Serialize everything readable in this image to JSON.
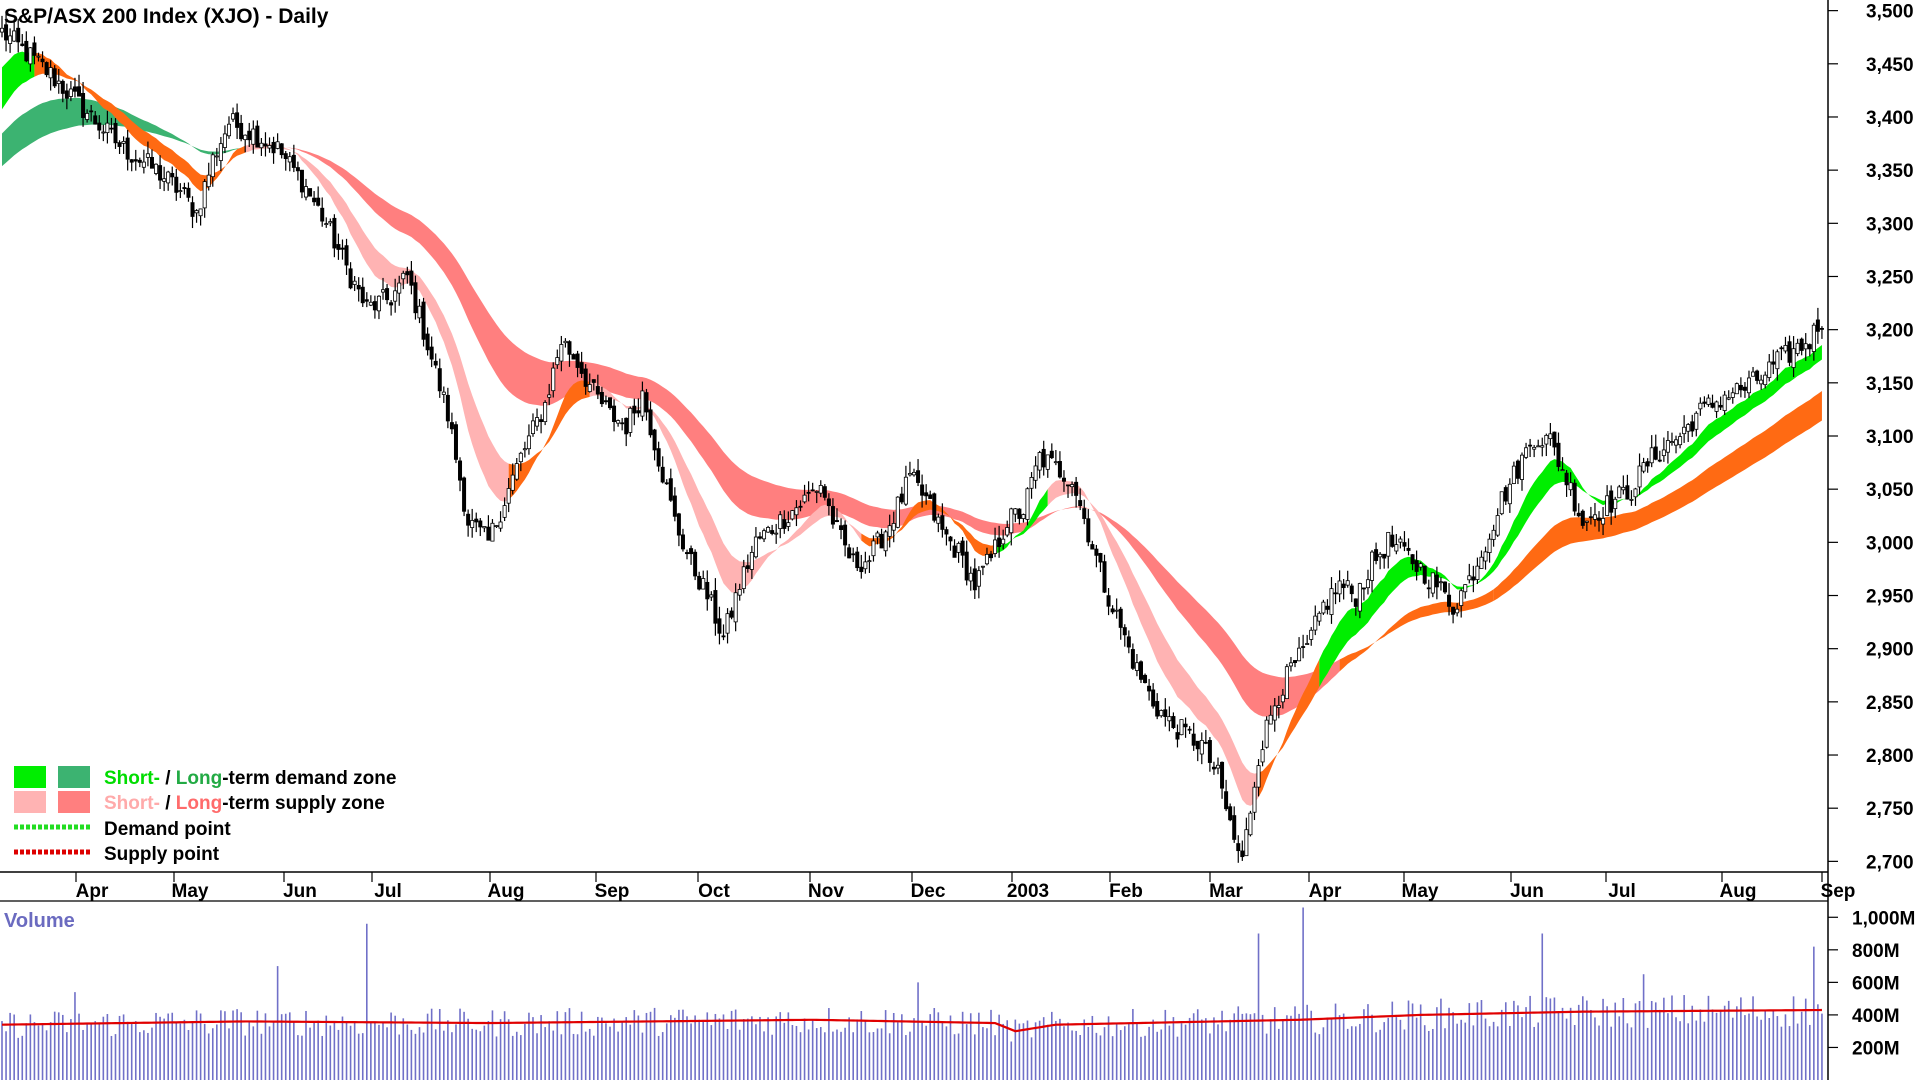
{
  "chart_title": "S&P/ASX 200 Index (XJO) - Daily",
  "colors": {
    "short_demand": "#00ee00",
    "long_demand": "#3cb371",
    "short_supply": "#ffb3b3",
    "long_supply": "#ff7f7f",
    "orange_zone": "#ff6a13",
    "demand_point": "#22dd22",
    "supply_point": "#dd0000",
    "volume_bar": "#7070c8",
    "volume_avg": "#e00000",
    "candle": "#000000"
  },
  "legend": {
    "row1": {
      "short": "Short-",
      "sep": " / ",
      "long": "Long",
      "rest": "-term demand zone"
    },
    "row2": {
      "short": "Short-",
      "sep": " / ",
      "long": "Long",
      "rest": "-term supply zone"
    },
    "row3": "Demand point",
    "row4": "Supply point"
  },
  "volume_label": "Volume",
  "chart_data": [
    {
      "type": "candlestick",
      "title": "S&P/ASX 200 Index (XJO) - Daily",
      "x_labels": [
        "Apr",
        "May",
        "Jun",
        "Jul",
        "Aug",
        "Sep",
        "Oct",
        "Nov",
        "Dec",
        "2003",
        "Feb",
        "Mar",
        "Apr",
        "May",
        "Jun",
        "Jul",
        "Aug",
        "Sep"
      ],
      "y_ticks": [
        "3,500",
        "3,450",
        "3,400",
        "3,350",
        "3,300",
        "3,250",
        "3,200",
        "3,150",
        "3,100",
        "3,050",
        "3,000",
        "2,950",
        "2,900",
        "2,850",
        "2,800",
        "2,750",
        "2,700"
      ],
      "ylim": [
        2690,
        3510
      ],
      "close_path_points": [
        [
          0,
          3480
        ],
        [
          12,
          3440
        ],
        [
          22,
          3400
        ],
        [
          30,
          3370
        ],
        [
          38,
          3350
        ],
        [
          44,
          3330
        ],
        [
          48,
          3310
        ],
        [
          52,
          3360
        ],
        [
          56,
          3395
        ],
        [
          62,
          3385
        ],
        [
          68,
          3370
        ],
        [
          74,
          3340
        ],
        [
          80,
          3300
        ],
        [
          86,
          3250
        ],
        [
          90,
          3220
        ],
        [
          96,
          3230
        ],
        [
          100,
          3250
        ],
        [
          104,
          3200
        ],
        [
          110,
          3120
        ],
        [
          115,
          3020
        ],
        [
          120,
          3000
        ],
        [
          124,
          3040
        ],
        [
          128,
          3080
        ],
        [
          134,
          3130
        ],
        [
          138,
          3190
        ],
        [
          142,
          3170
        ],
        [
          146,
          3140
        ],
        [
          150,
          3120
        ],
        [
          154,
          3110
        ],
        [
          158,
          3140
        ],
        [
          162,
          3080
        ],
        [
          166,
          3020
        ],
        [
          170,
          2980
        ],
        [
          174,
          2950
        ],
        [
          178,
          2910
        ],
        [
          182,
          2960
        ],
        [
          186,
          3000
        ],
        [
          192,
          3020
        ],
        [
          198,
          3040
        ],
        [
          202,
          3055
        ],
        [
          206,
          3010
        ],
        [
          210,
          2980
        ],
        [
          214,
          2985
        ],
        [
          220,
          3025
        ],
        [
          224,
          3060
        ],
        [
          228,
          3040
        ],
        [
          232,
          3010
        ],
        [
          236,
          2990
        ],
        [
          240,
          2960
        ],
        [
          244,
          2985
        ],
        [
          248,
          3020
        ],
        [
          252,
          3030
        ],
        [
          256,
          3080
        ],
        [
          260,
          3070
        ],
        [
          264,
          3060
        ],
        [
          268,
          3010
        ],
        [
          272,
          2960
        ],
        [
          276,
          2920
        ],
        [
          280,
          2880
        ],
        [
          284,
          2850
        ],
        [
          288,
          2830
        ],
        [
          292,
          2820
        ],
        [
          296,
          2810
        ],
        [
          300,
          2780
        ],
        [
          304,
          2720
        ],
        [
          306,
          2700
        ],
        [
          310,
          2800
        ],
        [
          314,
          2850
        ],
        [
          318,
          2880
        ],
        [
          322,
          2900
        ],
        [
          326,
          2940
        ],
        [
          330,
          2960
        ],
        [
          334,
          2950
        ],
        [
          338,
          2980
        ],
        [
          342,
          3000
        ],
        [
          346,
          2990
        ],
        [
          350,
          2975
        ],
        [
          354,
          2960
        ],
        [
          358,
          2940
        ],
        [
          362,
          2965
        ],
        [
          366,
          3000
        ],
        [
          370,
          3040
        ],
        [
          374,
          3070
        ],
        [
          378,
          3100
        ],
        [
          382,
          3095
        ],
        [
          386,
          3060
        ],
        [
          390,
          3020
        ],
        [
          394,
          3030
        ],
        [
          398,
          3040
        ],
        [
          402,
          3050
        ],
        [
          406,
          3075
        ],
        [
          410,
          3090
        ],
        [
          414,
          3100
        ],
        [
          418,
          3120
        ],
        [
          422,
          3130
        ],
        [
          426,
          3140
        ],
        [
          430,
          3145
        ],
        [
          434,
          3155
        ],
        [
          438,
          3170
        ],
        [
          442,
          3180
        ],
        [
          446,
          3190
        ],
        [
          449,
          3210
        ]
      ],
      "short_zone_color_segments": [
        {
          "from": 0,
          "to": 8,
          "color": "green"
        },
        {
          "from": 8,
          "to": 60,
          "color": "orange_mix"
        },
        {
          "from": 60,
          "to": 125,
          "color": "pink"
        },
        {
          "from": 125,
          "to": 145,
          "color": "orange"
        },
        {
          "from": 145,
          "to": 162,
          "color": "pink"
        },
        {
          "from": 162,
          "to": 212,
          "color": "pink"
        },
        {
          "from": 212,
          "to": 245,
          "color": "orange_mix"
        },
        {
          "from": 245,
          "to": 258,
          "color": "green"
        },
        {
          "from": 258,
          "to": 310,
          "color": "pink"
        },
        {
          "from": 310,
          "to": 325,
          "color": "orange"
        },
        {
          "from": 325,
          "to": 449,
          "color": "green"
        }
      ],
      "long_zone_color_segments": [
        {
          "from": 0,
          "to": 70,
          "color": "dark_green"
        },
        {
          "from": 70,
          "to": 330,
          "color": "salmon"
        },
        {
          "from": 330,
          "to": 368,
          "color": "orange"
        },
        {
          "from": 368,
          "to": 449,
          "color": "orange"
        }
      ]
    },
    {
      "type": "bar",
      "title": "Volume",
      "y_ticks": [
        "1,000M",
        "800M",
        "600M",
        "400M",
        "200M"
      ],
      "ylim": [
        0,
        1100
      ],
      "volume_avg_points": [
        [
          0,
          340
        ],
        [
          60,
          360
        ],
        [
          120,
          350
        ],
        [
          200,
          370
        ],
        [
          245,
          350
        ],
        [
          250,
          300
        ],
        [
          260,
          340
        ],
        [
          320,
          370
        ],
        [
          350,
          400
        ],
        [
          390,
          420
        ],
        [
          449,
          430
        ]
      ],
      "volume_spikes": [
        [
          18,
          540
        ],
        [
          68,
          700
        ],
        [
          90,
          960
        ],
        [
          226,
          600
        ],
        [
          321,
          1060
        ],
        [
          310,
          900
        ],
        [
          380,
          900
        ],
        [
          405,
          650
        ],
        [
          447,
          820
        ]
      ]
    }
  ]
}
